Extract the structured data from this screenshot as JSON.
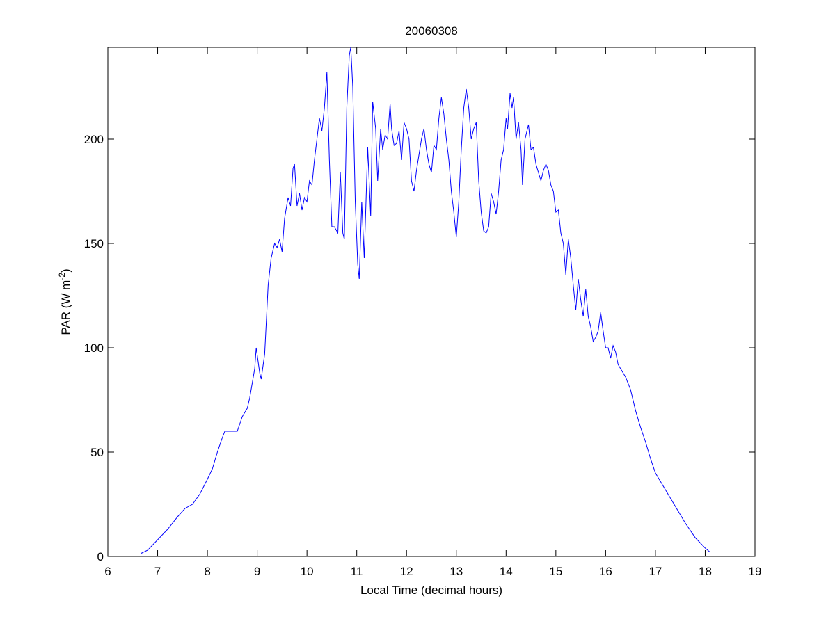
{
  "chart_data": {
    "type": "line",
    "title": "20060308",
    "xlabel": "Local Time (decimal hours)",
    "ylabel": [
      "PAR (W m",
      "-2",
      ")"
    ],
    "color": "#0000ff",
    "xlim": [
      6,
      19
    ],
    "xticks": [
      6,
      7,
      8,
      9,
      10,
      11,
      12,
      13,
      14,
      15,
      16,
      17,
      18,
      19
    ],
    "ylim": [
      0,
      244
    ],
    "yticks": [
      0,
      50,
      100,
      150,
      200
    ],
    "x": [
      6.67,
      6.8,
      7.0,
      7.2,
      7.4,
      7.55,
      7.7,
      7.85,
      8.0,
      8.1,
      8.2,
      8.3,
      8.35,
      8.5,
      8.6,
      8.7,
      8.8,
      8.85,
      8.95,
      8.98,
      9.05,
      9.08,
      9.15,
      9.22,
      9.28,
      9.35,
      9.4,
      9.45,
      9.5,
      9.55,
      9.62,
      9.67,
      9.72,
      9.75,
      9.8,
      9.85,
      9.9,
      9.95,
      10.0,
      10.05,
      10.1,
      10.15,
      10.2,
      10.25,
      10.3,
      10.35,
      10.4,
      10.45,
      10.5,
      10.55,
      10.62,
      10.67,
      10.72,
      10.75,
      10.8,
      10.85,
      10.88,
      10.92,
      10.97,
      11.02,
      11.05,
      11.1,
      11.15,
      11.22,
      11.28,
      11.32,
      11.38,
      11.42,
      11.48,
      11.52,
      11.57,
      11.62,
      11.67,
      11.7,
      11.75,
      11.8,
      11.85,
      11.9,
      11.95,
      12.0,
      12.05,
      12.1,
      12.15,
      12.2,
      12.3,
      12.35,
      12.4,
      12.45,
      12.5,
      12.55,
      12.6,
      12.65,
      12.7,
      12.75,
      12.8,
      12.85,
      12.9,
      12.95,
      13.0,
      13.05,
      13.1,
      13.15,
      13.2,
      13.25,
      13.3,
      13.35,
      13.4,
      13.45,
      13.5,
      13.55,
      13.6,
      13.65,
      13.7,
      13.75,
      13.8,
      13.85,
      13.9,
      13.95,
      14.0,
      14.03,
      14.08,
      14.12,
      14.15,
      14.2,
      14.25,
      14.3,
      14.33,
      14.38,
      14.45,
      14.5,
      14.55,
      14.6,
      14.7,
      14.75,
      14.8,
      14.85,
      14.9,
      14.95,
      15.0,
      15.05,
      15.1,
      15.15,
      15.2,
      15.25,
      15.3,
      15.35,
      15.4,
      15.45,
      15.5,
      15.55,
      15.6,
      15.65,
      15.7,
      15.75,
      15.8,
      15.85,
      15.9,
      15.95,
      16.0,
      16.05,
      16.1,
      16.15,
      16.2,
      16.25,
      16.3,
      16.4,
      16.5,
      16.6,
      16.7,
      16.8,
      16.9,
      17.0,
      17.2,
      17.4,
      17.6,
      17.8,
      18.0,
      18.1
    ],
    "values": [
      1.5,
      3,
      8,
      13,
      19,
      23,
      25,
      30,
      37,
      42,
      50,
      57,
      60,
      60,
      60,
      67,
      71,
      76,
      90,
      100,
      88,
      85,
      97,
      130,
      143,
      150,
      148,
      152,
      146,
      162,
      172,
      168,
      186,
      188,
      168,
      174,
      166,
      172,
      170,
      180,
      178,
      190,
      200,
      210,
      204,
      215,
      232,
      190,
      158,
      158,
      155,
      184,
      155,
      152,
      215,
      240,
      244,
      225,
      170,
      140,
      133,
      170,
      143,
      196,
      163,
      218,
      205,
      180,
      205,
      195,
      202,
      200,
      217,
      205,
      197,
      198,
      204,
      190,
      208,
      205,
      200,
      180,
      175,
      185,
      200,
      205,
      195,
      188,
      184,
      197,
      195,
      210,
      220,
      212,
      200,
      190,
      175,
      165,
      153,
      170,
      195,
      215,
      224,
      215,
      200,
      205,
      208,
      180,
      165,
      156,
      155,
      158,
      174,
      170,
      164,
      175,
      190,
      195,
      210,
      205,
      222,
      215,
      220,
      200,
      208,
      195,
      178,
      200,
      207,
      195,
      196,
      188,
      180,
      185,
      188,
      185,
      178,
      175,
      165,
      166,
      155,
      150,
      135,
      152,
      143,
      130,
      118,
      133,
      123,
      115,
      128,
      115,
      110,
      103,
      105,
      108,
      117,
      108,
      100,
      100,
      95,
      101,
      98,
      92,
      90,
      86,
      80,
      70,
      62,
      55,
      47,
      40,
      32,
      24,
      16,
      9,
      4,
      2
    ]
  }
}
